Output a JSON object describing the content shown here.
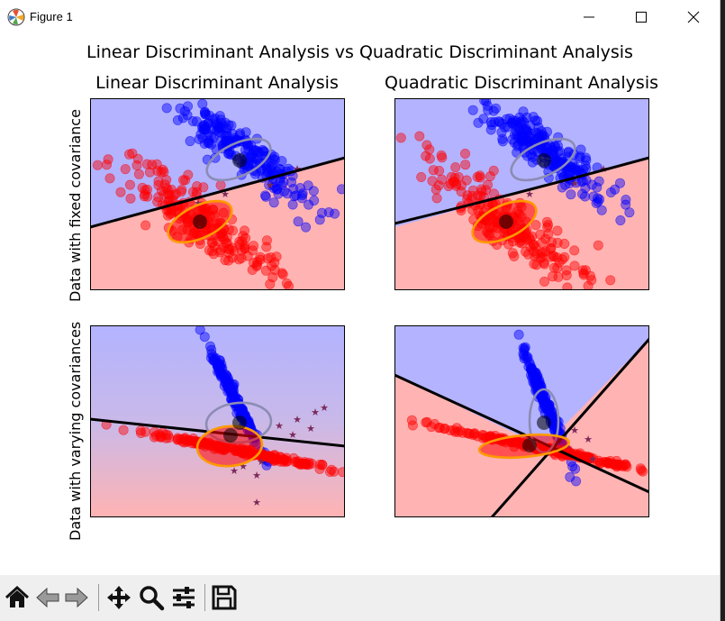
{
  "window": {
    "title": "Figure 1"
  },
  "figure": {
    "suptitle": "Linear Discriminant Analysis vs Quadratic Discriminant Analysis",
    "column_titles": [
      "Linear Discriminant Analysis",
      "Quadratic Discriminant Analysis"
    ],
    "row_labels": [
      "Data with fixed covariance",
      "Data with varying covariances"
    ]
  },
  "colors": {
    "class_0": "#ff0000",
    "class_1": "#0000ff",
    "region_0": "#ffb3b3",
    "region_1": "#b3b3ff",
    "boundary": "#000000",
    "ellipse_0": "#ff9900",
    "ellipse_1": "#8c8cb4"
  },
  "toolbar": {
    "tools": [
      "home-icon",
      "back-arrow-icon",
      "forward-arrow-icon",
      "pan-icon",
      "zoom-icon",
      "configure-subplots-icon",
      "save-icon"
    ]
  },
  "chart_data": [
    {
      "type": "scatter",
      "title": "Linear Discriminant Analysis",
      "ylabel": "Data with fixed covariance",
      "classes": [
        "0",
        "1"
      ],
      "ellipses": 2,
      "decision_boundary": "linear"
    },
    {
      "type": "scatter",
      "title": "Quadratic Discriminant Analysis",
      "classes": [
        "0",
        "1"
      ],
      "ellipses": 2,
      "decision_boundary": "quadratic"
    },
    {
      "type": "scatter",
      "ylabel": "Data with varying covariances",
      "classes": [
        "0",
        "1"
      ],
      "ellipses": 2,
      "decision_boundary": "linear"
    },
    {
      "type": "scatter",
      "classes": [
        "0",
        "1"
      ],
      "ellipses": 2,
      "decision_boundary": "quadratic"
    }
  ]
}
